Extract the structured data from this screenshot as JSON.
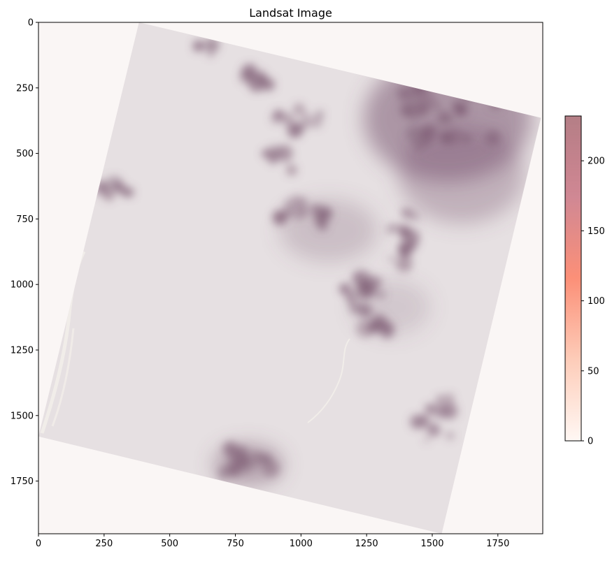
{
  "chart_data": {
    "type": "heatmap",
    "title": "Landsat Image",
    "xlabel": "",
    "ylabel": "",
    "xlim": [
      0,
      1921
    ],
    "ylim": [
      1951,
      0
    ],
    "x_ticks": [
      0,
      250,
      500,
      750,
      1000,
      1250,
      1500,
      1750
    ],
    "y_ticks": [
      0,
      250,
      500,
      750,
      1000,
      1250,
      1500,
      1750
    ],
    "image_footprint": [
      [
        383,
        0
      ],
      [
        1914,
        364
      ],
      [
        1536,
        1951
      ],
      [
        0,
        1580
      ]
    ],
    "nodata_color": "#faf6f5",
    "land_color": "#e6e0e2",
    "dark_color": "#7c5a72",
    "colorbar": {
      "label": "",
      "range": [
        0,
        232
      ],
      "ticks": [
        0,
        50,
        100,
        150,
        200
      ],
      "colors": [
        "#fff5f0",
        "#fcbba1",
        "#fb6a4a",
        "#c06070",
        "#b07880"
      ]
    },
    "grid": false
  }
}
